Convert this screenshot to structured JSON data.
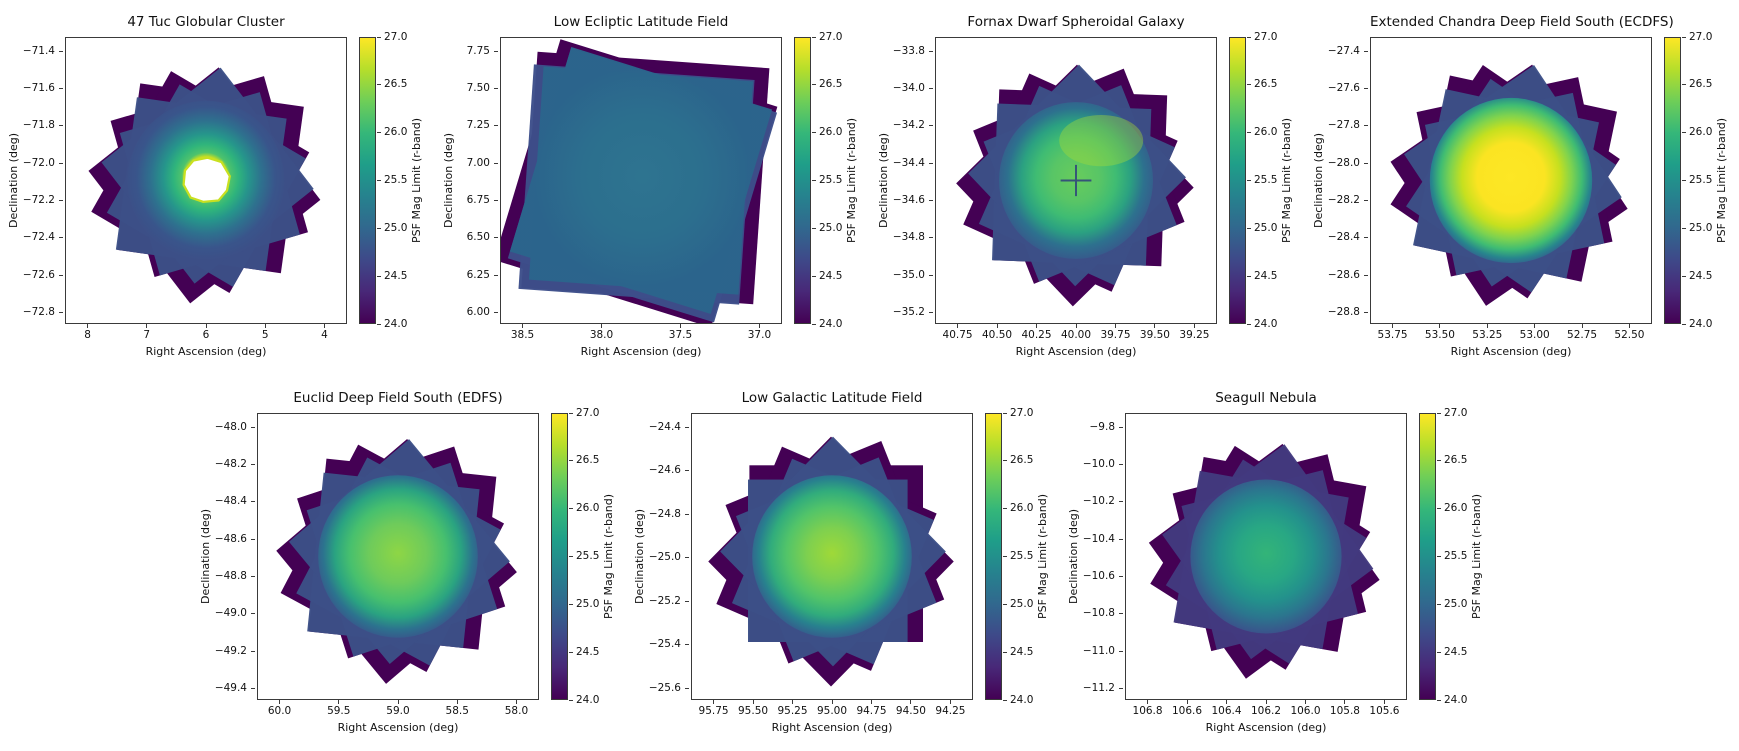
{
  "figure": {
    "background_color": "#ffffff",
    "colormap": "viridis",
    "layout_note": "7 survey-depth coverage maps: 4 in top row, 3 centered in bottom row",
    "colorbar": {
      "label": "PSF Mag Limit (r-band)",
      "ticks": [
        "27.0",
        "26.5",
        "26.0",
        "25.5",
        "25.0",
        "24.5",
        "24.0"
      ],
      "vmin": 24.0,
      "vmax": 27.0
    },
    "viridis_css_stops": [
      "#440154",
      "#482878",
      "#3e4989",
      "#31688e",
      "#26828e",
      "#1f9e89",
      "#35b779",
      "#6ece58",
      "#b5de2b",
      "#fde725"
    ]
  },
  "chart_data": [
    {
      "type": "heatmap",
      "id": "47-tuc-globular-cluster",
      "title": "47 Tuc Globular Cluster",
      "xlabel": "Right Ascension (deg)",
      "ylabel": "Declination (deg)",
      "x_ticks": [
        "8",
        "7",
        "6",
        "5",
        "4"
      ],
      "y_ticks": [
        "−71.4",
        "−71.6",
        "−71.8",
        "−72.0",
        "−72.2",
        "−72.4",
        "−72.6",
        "−72.8"
      ],
      "x_range": [
        8,
        4
      ],
      "y_range": [
        -71.4,
        -72.8
      ],
      "x_inverted": true,
      "value_label": "PSF Mag Limit (r-band)",
      "value_range": [
        24.0,
        27.0
      ],
      "reading": "Annular coverage: white masked hole at cluster core with thin yellow-green rim (~26.8), teal-green ring ~25.5-26.0, dark purple dithered star-shaped edges ~24.0-24.5",
      "render": {
        "edge_color": "#440154",
        "mid_color": "#3c4f87",
        "interior": "circle",
        "gradient": [
          [
            "0%",
            "#ffffff"
          ],
          [
            "20%",
            "#ffffff"
          ],
          [
            "24%",
            "#d8e219"
          ],
          [
            "30%",
            "#4ec36c"
          ],
          [
            "40%",
            "#2fb47c"
          ],
          [
            "52%",
            "#26968b"
          ],
          [
            "68%",
            "#2e718e"
          ],
          [
            "85%",
            "#39558b"
          ],
          [
            "100%",
            "#3c4f87"
          ]
        ],
        "hole": true,
        "hole_color": "#ffffff",
        "hole_rim_color": "#c9e020"
      }
    },
    {
      "type": "heatmap",
      "id": "low-ecliptic-latitude-field",
      "title": "Low Ecliptic Latitude Field",
      "xlabel": "Right Ascension (deg)",
      "ylabel": "Declination (deg)",
      "x_ticks": [
        "38.5",
        "38.0",
        "37.5",
        "37.0"
      ],
      "y_ticks": [
        "7.75",
        "7.50",
        "7.25",
        "7.00",
        "6.75",
        "6.50",
        "6.25",
        "6.00"
      ],
      "x_range": [
        38.5,
        37.0
      ],
      "y_range": [
        7.75,
        6.0
      ],
      "x_inverted": true,
      "value_label": "PSF Mag Limit (r-band)",
      "value_range": [
        24.0,
        27.0
      ],
      "reading": "Two large overlapping tilted square footprints with nearly uniform teal-blue depth ~25.0-25.3; narrow dark purple border ~24.0-24.5",
      "render": {
        "edge_color": "#440154",
        "mid_color": "#3d4e8a",
        "interior": "square",
        "gradient": [
          [
            "0%",
            "#2e7490"
          ],
          [
            "55%",
            "#2c6f8e"
          ],
          [
            "100%",
            "#2b648c"
          ]
        ],
        "hole": false
      }
    },
    {
      "type": "heatmap",
      "id": "fornax-dwarf-spheroidal-galaxy",
      "title": "Fornax Dwarf Spheroidal Galaxy",
      "xlabel": "Right Ascension (deg)",
      "ylabel": "Declination (deg)",
      "x_ticks": [
        "40.75",
        "40.50",
        "40.25",
        "40.00",
        "39.75",
        "39.50",
        "39.25"
      ],
      "y_ticks": [
        "−33.8",
        "−34.0",
        "−34.2",
        "−34.4",
        "−34.6",
        "−34.8",
        "−35.0",
        "−35.2"
      ],
      "x_range": [
        40.75,
        39.25
      ],
      "y_range": [
        -33.8,
        -35.2
      ],
      "x_inverted": true,
      "value_label": "PSF Mag Limit (r-band)",
      "value_range": [
        24.0,
        27.0
      ],
      "reading": "Green interior ~25.8-26.3 with brighter yellow-green patch upper-middle, small dark cross artifact near center, navy mid band ~24.5-25.0, dark purple jagged edges ~24.0",
      "render": {
        "edge_color": "#440154",
        "mid_color": "#3c4f87",
        "interior": "circle",
        "gradient": [
          [
            "0%",
            "#68cc5c"
          ],
          [
            "30%",
            "#58c566"
          ],
          [
            "50%",
            "#3fbc73"
          ],
          [
            "68%",
            "#2ba181"
          ],
          [
            "85%",
            "#2d718e"
          ],
          [
            "100%",
            "#365b8c"
          ]
        ],
        "hole": false,
        "bright_patch_color": "#a8db34",
        "center_mark": "cross",
        "center_mark_color": "#2e3f7e"
      }
    },
    {
      "type": "heatmap",
      "id": "extended-chandra-deep-field-south-ecdfs",
      "title": "Extended Chandra Deep Field South (ECDFS)",
      "xlabel": "Right Ascension (deg)",
      "ylabel": "Declination (deg)",
      "x_ticks": [
        "53.75",
        "53.50",
        "53.25",
        "53.00",
        "52.75",
        "52.50"
      ],
      "y_ticks": [
        "−27.4",
        "−27.6",
        "−27.8",
        "−28.0",
        "−28.2",
        "−28.4",
        "−28.6",
        "−28.8"
      ],
      "x_range": [
        53.75,
        52.5
      ],
      "y_range": [
        -27.4,
        -28.8
      ],
      "x_inverted": true,
      "value_label": "PSF Mag Limit (r-band)",
      "value_range": [
        24.0,
        27.0
      ],
      "reading": "Deep drilling field: large saturated yellow core at ~27.0, green annulus ~26.0-26.5, teal-blue transition ~25.0, ragged dark purple rim ~24.0",
      "render": {
        "edge_color": "#440154",
        "mid_color": "#3c4f87",
        "interior": "circle",
        "gradient": [
          [
            "0%",
            "#fde725"
          ],
          [
            "40%",
            "#fbe422"
          ],
          [
            "58%",
            "#c6e01f"
          ],
          [
            "72%",
            "#7fd34e"
          ],
          [
            "84%",
            "#3fbc73"
          ],
          [
            "94%",
            "#27868d"
          ],
          [
            "100%",
            "#31688e"
          ]
        ],
        "hole": false
      }
    },
    {
      "type": "heatmap",
      "id": "euclid-deep-field-south-edfs",
      "title": "Euclid Deep Field South (EDFS)",
      "xlabel": "Right Ascension (deg)",
      "ylabel": "Declination (deg)",
      "x_ticks": [
        "60.0",
        "59.5",
        "59.0",
        "58.5",
        "58.0"
      ],
      "y_ticks": [
        "−48.0",
        "−48.2",
        "−48.4",
        "−48.6",
        "−48.8",
        "−49.0",
        "−49.2",
        "−49.4"
      ],
      "x_range": [
        60.0,
        58.0
      ],
      "y_range": [
        -48.0,
        -49.4
      ],
      "x_inverted": true,
      "value_label": "PSF Mag Limit (r-band)",
      "value_range": [
        24.0,
        27.0
      ],
      "reading": "Broad green core ~26.0-26.4, grading through teal ~25.5 to blue ~24.8, spiky dark purple dithered boundary ~24.0",
      "render": {
        "edge_color": "#440154",
        "mid_color": "#3c4f87",
        "interior": "circle",
        "gradient": [
          [
            "0%",
            "#8ed645"
          ],
          [
            "35%",
            "#6ecb5b"
          ],
          [
            "58%",
            "#47c06e"
          ],
          [
            "76%",
            "#2aa381"
          ],
          [
            "90%",
            "#2c738e"
          ],
          [
            "100%",
            "#365b8c"
          ]
        ],
        "hole": false
      }
    },
    {
      "type": "heatmap",
      "id": "low-galactic-latitude-field",
      "title": "Low Galactic Latitude Field",
      "xlabel": "Right Ascension (deg)",
      "ylabel": "Declination (deg)",
      "x_ticks": [
        "95.75",
        "95.50",
        "95.25",
        "95.00",
        "94.75",
        "94.50",
        "94.25"
      ],
      "y_ticks": [
        "−24.4",
        "−24.6",
        "−24.8",
        "−25.0",
        "−25.2",
        "−25.4",
        "−25.6"
      ],
      "x_range": [
        95.75,
        94.25
      ],
      "y_range": [
        -24.4,
        -25.6
      ],
      "x_inverted": true,
      "value_label": "PSF Mag Limit (r-band)",
      "value_range": [
        24.0,
        27.0
      ],
      "reading": "Diamond-oriented overlapping footprints; yellow-green core ~26.2-26.4, green ~25.8, blue mid band ~24.8, dark purple corners ~24.0",
      "render": {
        "edge_color": "#440154",
        "mid_color": "#3c4f87",
        "interior": "circle",
        "gradient": [
          [
            "0%",
            "#9fd938"
          ],
          [
            "30%",
            "#7ed04f"
          ],
          [
            "55%",
            "#52c469"
          ],
          [
            "74%",
            "#31ac7c"
          ],
          [
            "88%",
            "#28818e"
          ],
          [
            "100%",
            "#345f8d"
          ]
        ],
        "hole": false
      }
    },
    {
      "type": "heatmap",
      "id": "seagull-nebula",
      "title": "Seagull Nebula",
      "xlabel": "Right Ascension (deg)",
      "ylabel": "Declination (deg)",
      "x_ticks": [
        "106.8",
        "106.6",
        "106.4",
        "106.2",
        "106.0",
        "105.8",
        "105.6"
      ],
      "y_ticks": [
        "−9.8",
        "−10.0",
        "−10.2",
        "−10.4",
        "−10.6",
        "−10.8",
        "−11.0",
        "−11.2"
      ],
      "x_range": [
        106.8,
        105.6
      ],
      "y_range": [
        -9.8,
        -11.2
      ],
      "x_inverted": true,
      "value_label": "PSF Mag Limit (r-band)",
      "value_range": [
        24.0,
        27.0
      ],
      "reading": "Shallower field: muted teal-green center ~25.5-25.8, patchy blue ~24.7-25.0, extensive dark purple mosaic edges ~24.0-24.3",
      "render": {
        "edge_color": "#440154",
        "mid_color": "#423a7f",
        "interior": "circle",
        "gradient": [
          [
            "0%",
            "#33b478"
          ],
          [
            "35%",
            "#28a784"
          ],
          [
            "60%",
            "#23918c"
          ],
          [
            "80%",
            "#2b768e"
          ],
          [
            "100%",
            "#3a538b"
          ]
        ],
        "hole": false
      }
    }
  ]
}
